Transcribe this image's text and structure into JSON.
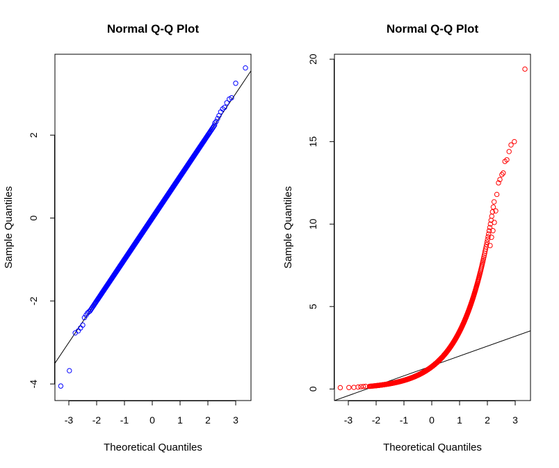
{
  "chart_data": [
    {
      "type": "scatter",
      "title": "Normal Q-Q Plot",
      "xlabel": "Theoretical Quantiles",
      "ylabel": "Sample Quantiles",
      "xticks": [
        "-3",
        "-2",
        "-1",
        "0",
        "1",
        "2",
        "3"
      ],
      "yticks": [
        "-4",
        "-2",
        "0",
        "2"
      ],
      "xlim": [
        -3.5,
        3.55
      ],
      "ylim": [
        -4.4,
        3.95
      ],
      "point_color": "#0000ff",
      "line_color": "#000000",
      "reference_line": {
        "intercept": 0.0,
        "slope": 1.0
      },
      "distribution": "normal",
      "n_points": 1000,
      "points": [
        [
          -3.29,
          -4.05
        ],
        [
          -2.98,
          -3.68
        ],
        [
          -2.77,
          -2.77
        ],
        [
          -2.66,
          -2.72
        ],
        [
          -2.58,
          -2.65
        ],
        [
          -2.5,
          -2.58
        ],
        [
          -2.44,
          -2.4
        ],
        [
          -2.38,
          -2.34
        ],
        [
          -2.33,
          -2.29
        ],
        [
          -2.28,
          -2.26
        ],
        [
          2.25,
          2.29
        ],
        [
          2.3,
          2.33
        ],
        [
          2.35,
          2.4
        ],
        [
          2.4,
          2.47
        ],
        [
          2.46,
          2.56
        ],
        [
          2.53,
          2.63
        ],
        [
          2.6,
          2.67
        ],
        [
          2.68,
          2.78
        ],
        [
          2.77,
          2.87
        ],
        [
          2.85,
          2.9
        ],
        [
          3.0,
          3.25
        ],
        [
          3.35,
          3.62
        ]
      ],
      "grid": false
    },
    {
      "type": "scatter",
      "title": "Normal Q-Q Plot",
      "xlabel": "Theoretical Quantiles",
      "ylabel": "Sample Quantiles",
      "xticks": [
        "-3",
        "-2",
        "-1",
        "0",
        "1",
        "2",
        "3"
      ],
      "yticks": [
        "0",
        "5",
        "10",
        "15",
        "20"
      ],
      "xlim": [
        -3.5,
        3.55
      ],
      "ylim": [
        -0.7,
        20.3
      ],
      "point_color": "#ff0000",
      "line_color": "#000000",
      "reference_line": {
        "intercept": 1.4,
        "slope": 0.6
      },
      "distribution": "lognormal",
      "n_points": 1000,
      "points": [
        [
          -3.29,
          0.08
        ],
        [
          -2.98,
          0.09
        ],
        [
          -2.8,
          0.1
        ],
        [
          -2.65,
          0.12
        ],
        [
          -2.55,
          0.14
        ],
        [
          -2.46,
          0.15
        ],
        [
          -2.38,
          0.16
        ],
        [
          2.1,
          8.7
        ],
        [
          2.15,
          9.2
        ],
        [
          2.2,
          9.6
        ],
        [
          2.25,
          10.1
        ],
        [
          2.3,
          10.8
        ],
        [
          2.34,
          11.8
        ],
        [
          2.4,
          12.5
        ],
        [
          2.45,
          12.7
        ],
        [
          2.52,
          13.0
        ],
        [
          2.57,
          13.1
        ],
        [
          2.63,
          13.8
        ],
        [
          2.7,
          13.9
        ],
        [
          2.78,
          14.4
        ],
        [
          2.85,
          14.8
        ],
        [
          2.97,
          15.0
        ],
        [
          3.35,
          19.4
        ]
      ],
      "grid": false
    }
  ]
}
